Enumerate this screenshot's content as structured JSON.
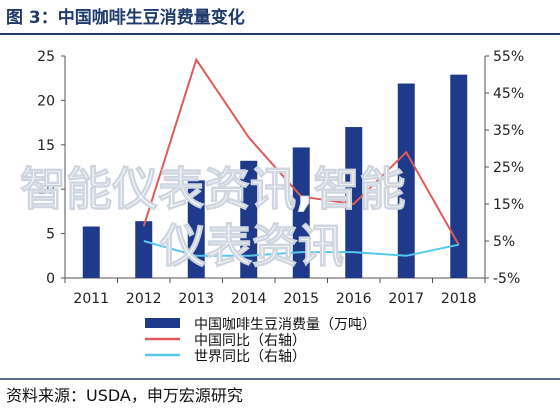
{
  "chart_data": {
    "type": "bar",
    "title": "图 3：中国咖啡生豆消费量变化",
    "categories": [
      "2011",
      "2012",
      "2013",
      "2014",
      "2015",
      "2016",
      "2017",
      "2018"
    ],
    "series": [
      {
        "name": "中国咖啡生豆消费量（万吨）",
        "type": "bar",
        "axis": "left",
        "color": "#1f3a8a",
        "values": [
          5.8,
          6.4,
          11.0,
          13.2,
          14.7,
          17.0,
          21.9,
          22.9
        ]
      },
      {
        "name": "中国同比（右轴）",
        "type": "line",
        "axis": "right",
        "color": "#e05a5a",
        "values": [
          null,
          9.0,
          54.0,
          33.0,
          17.0,
          15.0,
          29.0,
          4.0
        ]
      },
      {
        "name": "世界同比（右轴）",
        "type": "line",
        "axis": "right",
        "color": "#55c8f0",
        "values": [
          null,
          5.0,
          1.0,
          1.0,
          2.0,
          2.0,
          1.0,
          4.0
        ]
      }
    ],
    "y_left": {
      "min": 0,
      "max": 25,
      "ticks": [
        "0",
        "5",
        "10",
        "15",
        "20",
        "25"
      ]
    },
    "y_right": {
      "min": -5,
      "max": 55,
      "ticks": [
        "-5%",
        "5%",
        "15%",
        "25%",
        "35%",
        "45%",
        "55%"
      ]
    },
    "grid": false,
    "legend_position": "bottom"
  },
  "source": "资料来源：USDA，申万宏源研究",
  "watermark": {
    "line1": "智能仪表资讯,智能",
    "line2": "仪表资讯"
  }
}
